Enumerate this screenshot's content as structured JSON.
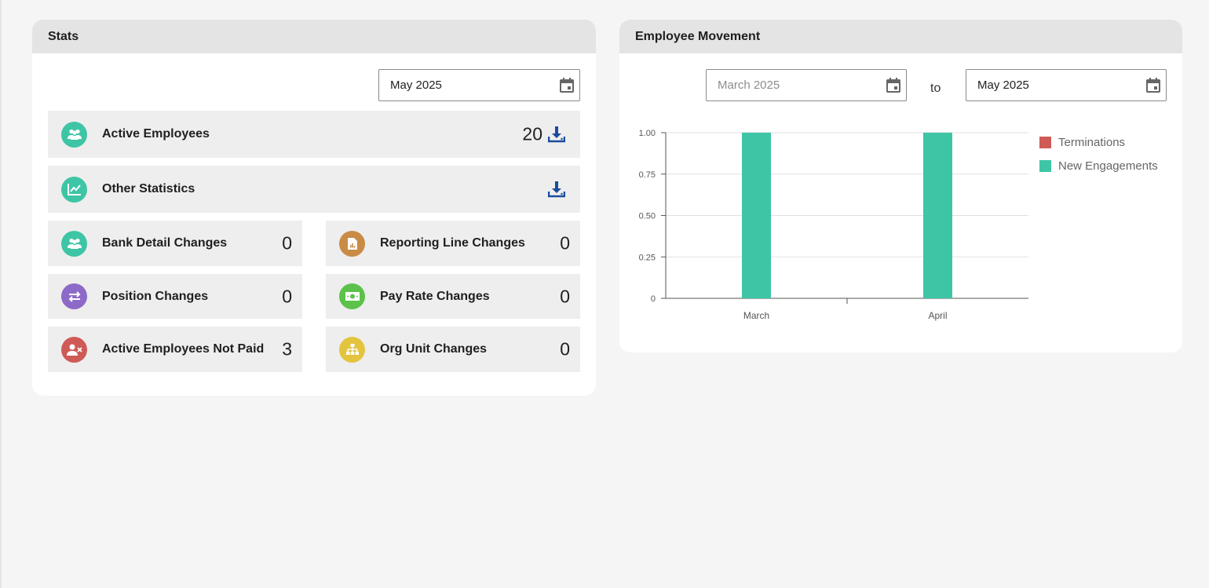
{
  "stats": {
    "title": "Stats",
    "date_value": "May 2025",
    "active_employees": {
      "label": "Active Employees",
      "value": "20",
      "color": "#3ec5a6"
    },
    "other_statistics": {
      "label": "Other Statistics",
      "color": "#3ec5a6"
    },
    "tiles": {
      "bank_detail": {
        "label": "Bank Detail Changes",
        "value": "0",
        "color": "#3ec5a6"
      },
      "reporting_line": {
        "label": "Reporting Line Changes",
        "value": "0",
        "color": "#c98b45"
      },
      "position": {
        "label": "Position Changes",
        "value": "0",
        "color": "#8d6ac8"
      },
      "pay_rate": {
        "label": "Pay Rate Changes",
        "value": "0",
        "color": "#5cc24a"
      },
      "not_paid": {
        "label": "Active Employees Not Paid",
        "value": "3",
        "color": "#cf5a56"
      },
      "org_unit": {
        "label": "Org Unit Changes",
        "value": "0",
        "color": "#e3c43e"
      }
    },
    "download_color": "#1a4c9c"
  },
  "movement": {
    "title": "Employee Movement",
    "from_value": "March 2025",
    "to_label": "to",
    "to_value": "May 2025"
  },
  "chart_data": {
    "type": "bar",
    "categories": [
      "March",
      "April"
    ],
    "series": [
      {
        "name": "Terminations",
        "values": [
          0,
          0
        ],
        "color": "#cf5b57"
      },
      {
        "name": "New Engagements",
        "values": [
          1,
          1
        ],
        "color": "#3ec5a6"
      }
    ],
    "ylim": [
      0,
      1
    ],
    "yticks": [
      "0",
      "0.25",
      "0.50",
      "0.75",
      "1.00"
    ],
    "grid": true,
    "legend": "right"
  }
}
